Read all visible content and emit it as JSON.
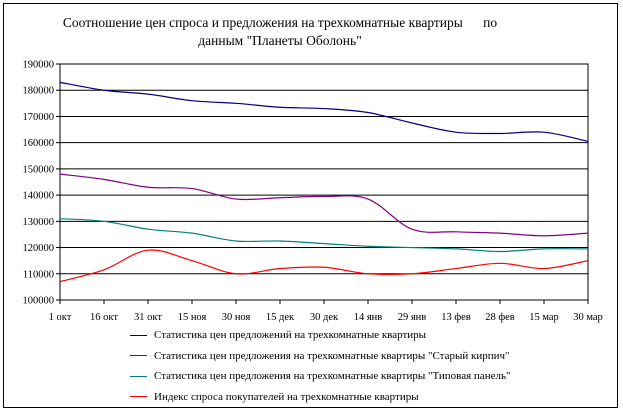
{
  "chart_data": {
    "type": "line",
    "title": "Соотношение цен спроса и предложения на трехкомнатные квартиры      по данным \"Планеты Оболонь\"",
    "categories": [
      "1 окт",
      "16 окт",
      "31 окт",
      "15 ноя",
      "30 ноя",
      "15 дек",
      "30 дек",
      "14 янв",
      "29 янв",
      "13 фев",
      "28 фев",
      "15 мар",
      "30 мар"
    ],
    "ylim": [
      100000,
      190000
    ],
    "yticks": [
      "190000",
      "180000",
      "170000",
      "160000",
      "150000",
      "140000",
      "130000",
      "120000",
      "110000",
      "100000"
    ],
    "grid": true,
    "legend_position": "bottom",
    "series": [
      {
        "name": "Статистика цен предложений на трехкомнатные квартиры",
        "color": "#000080",
        "values": [
          183000,
          180000,
          178500,
          176000,
          175000,
          173500,
          173000,
          171500,
          167500,
          164000,
          163500,
          164000,
          160500
        ]
      },
      {
        "name": "Статистика цен предложения на трехкомнатные квартиры \"Старый кирпич\"",
        "color": "#800080",
        "values": [
          148000,
          146000,
          143000,
          142500,
          138500,
          139000,
          139500,
          138500,
          127000,
          126000,
          125500,
          124500,
          125500
        ]
      },
      {
        "name": "Статистика цен предложения на трехкомнатные квартиры \"Типовая панель\"",
        "color": "#008080",
        "values": [
          131000,
          130000,
          127000,
          125500,
          122500,
          122500,
          121500,
          120500,
          120000,
          119500,
          118500,
          119500,
          119500
        ]
      },
      {
        "name": "Индекс спроса покупателей  на трехкомнатные квартиры",
        "color": "#ff0000",
        "values": [
          107000,
          111500,
          119000,
          115000,
          110000,
          112000,
          112500,
          110000,
          110000,
          112000,
          114000,
          112000,
          115000
        ]
      }
    ]
  }
}
